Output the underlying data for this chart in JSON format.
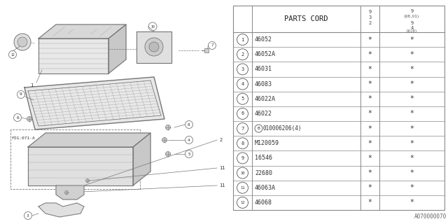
{
  "bg_color": "#ffffff",
  "rows": [
    {
      "num": "1",
      "part": "46052",
      "c1": "*",
      "c2": "*"
    },
    {
      "num": "2",
      "part": "46052A",
      "c1": "*",
      "c2": "*"
    },
    {
      "num": "3",
      "part": "46031",
      "c1": "*",
      "c2": "*"
    },
    {
      "num": "4",
      "part": "46083",
      "c1": "*",
      "c2": "*"
    },
    {
      "num": "5",
      "part": "46022A",
      "c1": "*",
      "c2": "*"
    },
    {
      "num": "6",
      "part": "46022",
      "c1": "*",
      "c2": "*"
    },
    {
      "num": "7",
      "part": "010006206(4)",
      "c1": "*",
      "c2": "*"
    },
    {
      "num": "8",
      "part": "M120059",
      "c1": "*",
      "c2": "*"
    },
    {
      "num": "9",
      "part": "16546",
      "c1": "*",
      "c2": "*"
    },
    {
      "num": "10",
      "part": "22680",
      "c1": "*",
      "c2": "*"
    },
    {
      "num": "11",
      "part": "46063A",
      "c1": "*",
      "c2": "*"
    },
    {
      "num": "12",
      "part": "46068",
      "c1": "*",
      "c2": "*"
    }
  ],
  "footer": "A070000070",
  "lc": "#777777",
  "tc": "#888888"
}
